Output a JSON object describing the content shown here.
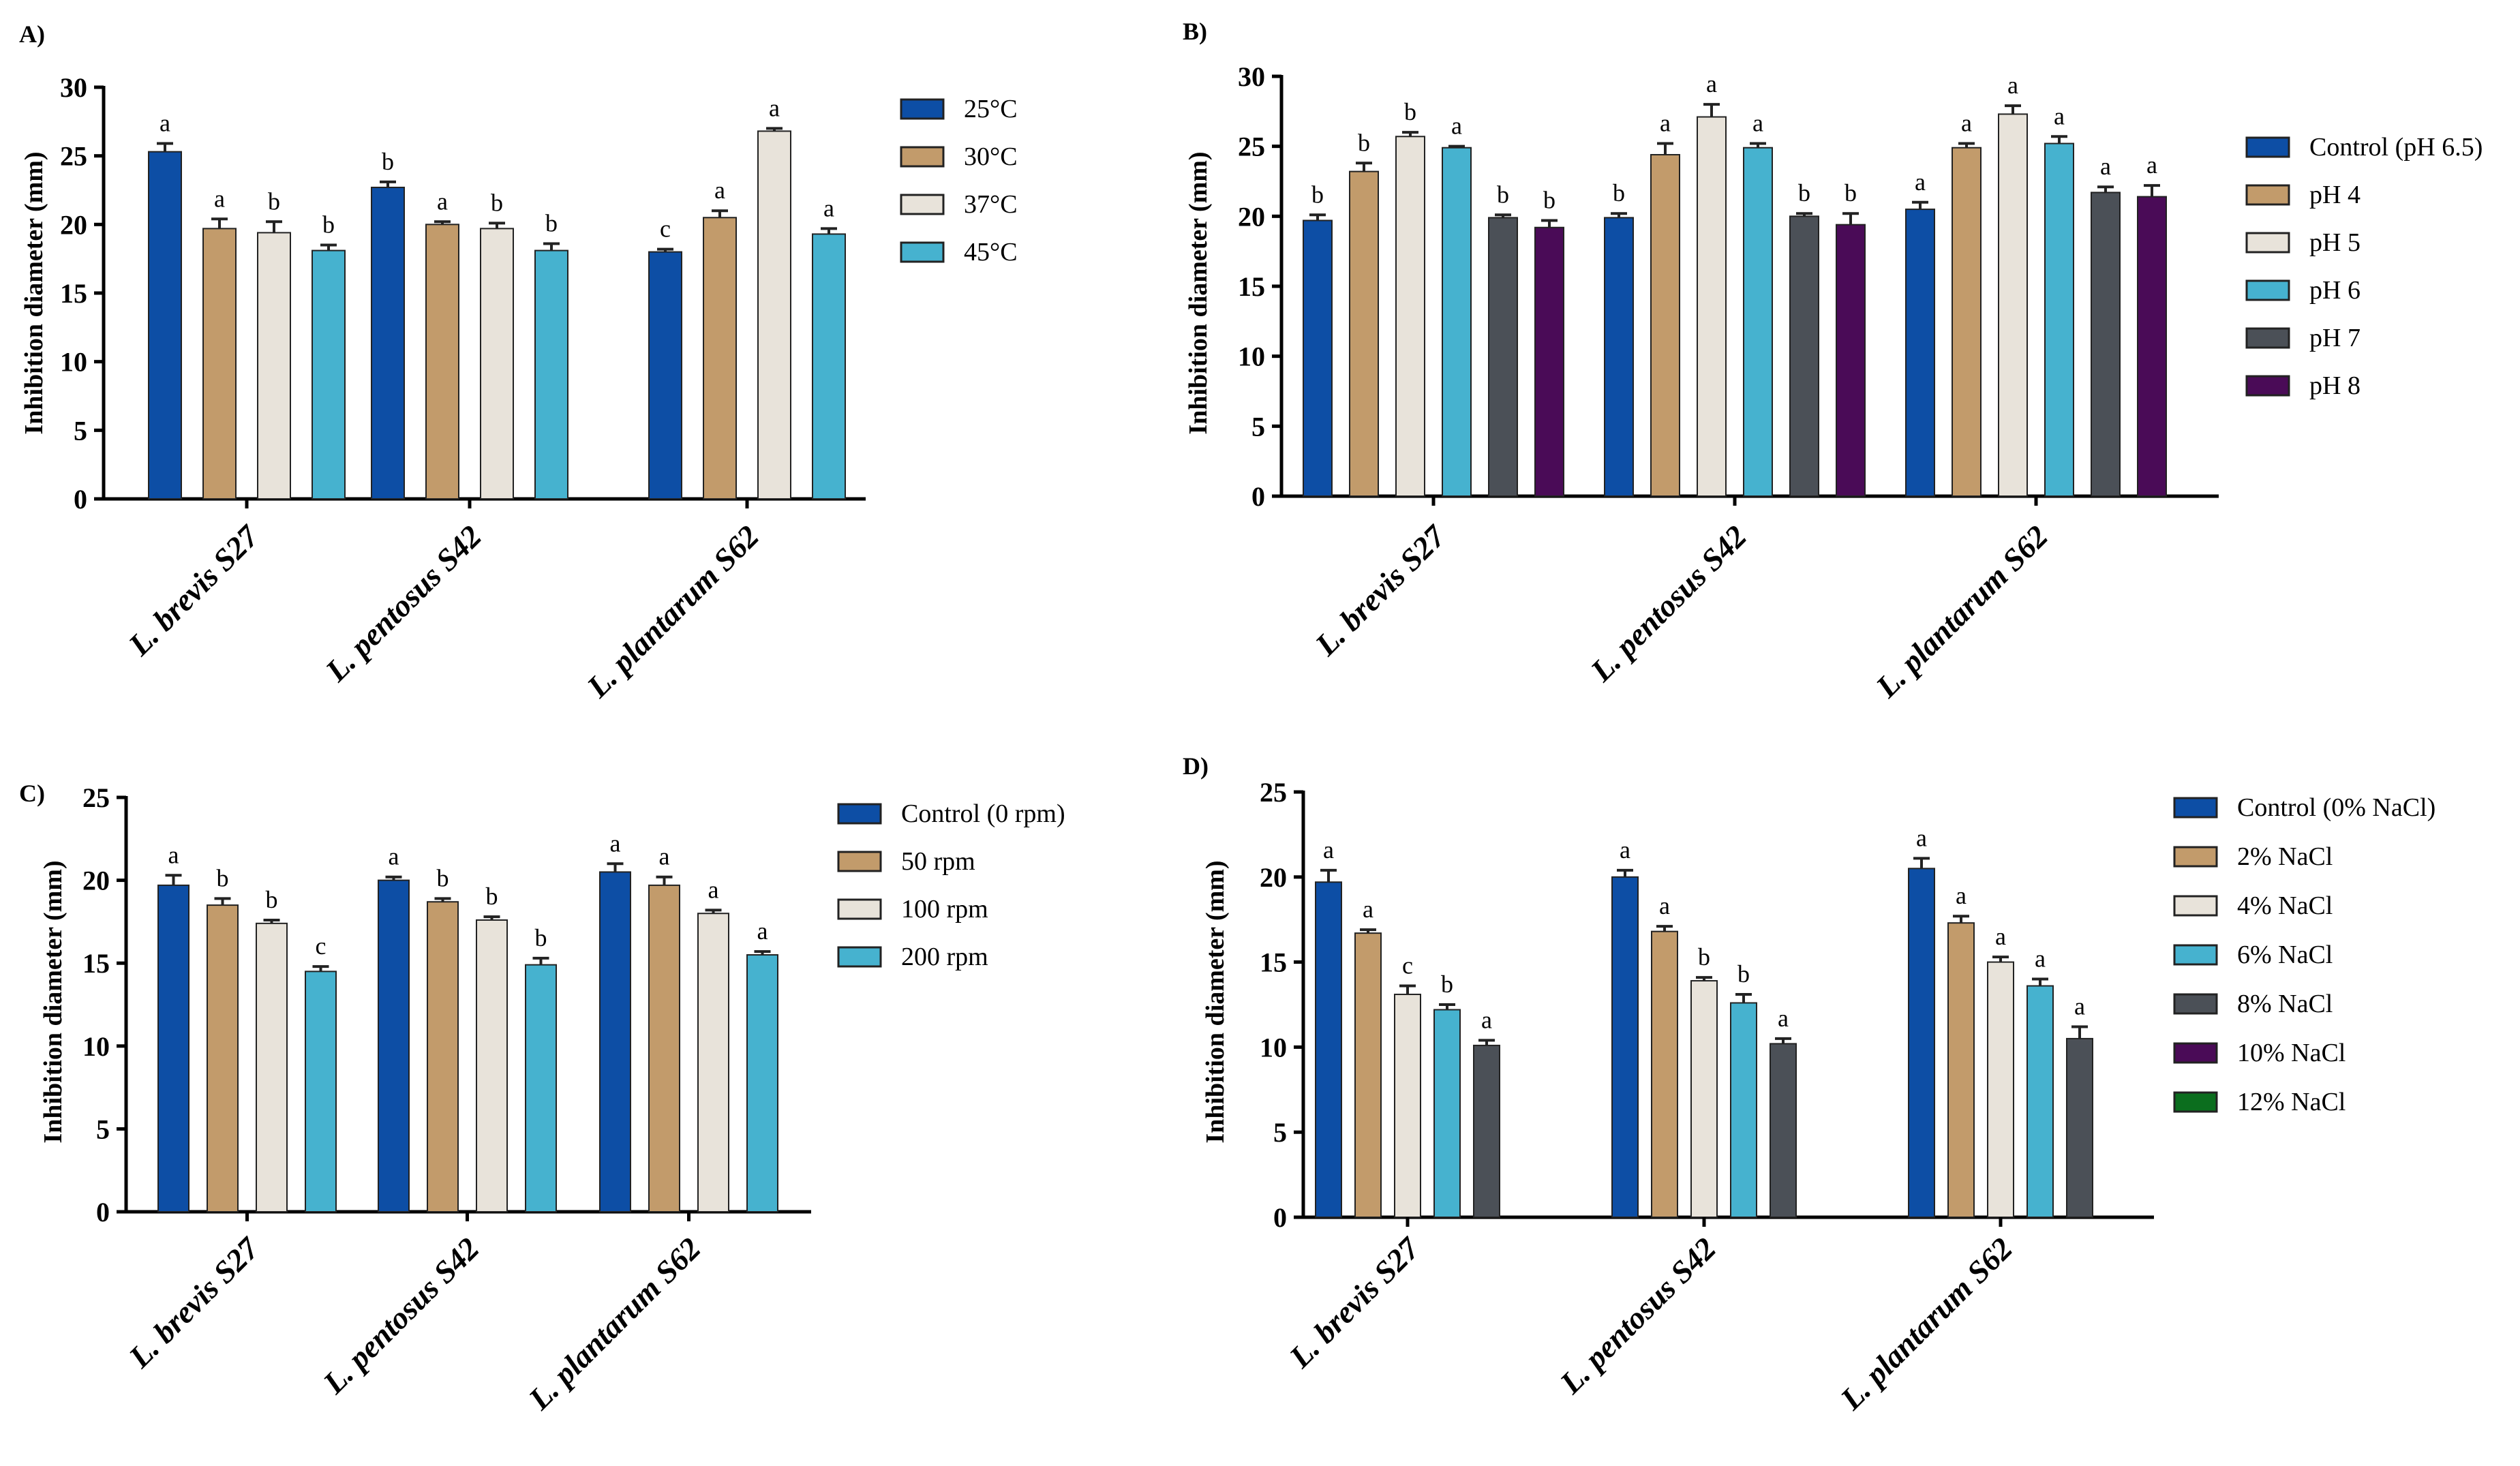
{
  "colors": {
    "blue": "#0d4ea5",
    "tan": "#c29b6b",
    "cream": "#e8e3da",
    "cyan": "#46b2cf",
    "gray": "#4b5057",
    "purple": "#4a0b57",
    "green": "#0b6e1e"
  },
  "chart_data": [
    {
      "panel_label": "A)",
      "type": "bar",
      "ylabel": "Inhibition diameter (mm)",
      "ylim": [
        0,
        30
      ],
      "yticks": [
        0,
        5,
        10,
        15,
        20,
        25,
        30
      ],
      "categories": [
        "L. brevis S27",
        "L. pentosus S42",
        "L. plantarum S62"
      ],
      "series": [
        {
          "name": "25°C",
          "color": "blue",
          "values": [
            25.3,
            22.7,
            18.0
          ],
          "errors": [
            0.6,
            0.4,
            0.2
          ],
          "letters": [
            "a",
            "b",
            "c"
          ]
        },
        {
          "name": "30°C",
          "color": "tan",
          "values": [
            19.7,
            20.0,
            20.5
          ],
          "errors": [
            0.7,
            0.2,
            0.5
          ],
          "letters": [
            "a",
            "a",
            "a"
          ]
        },
        {
          "name": "37°C",
          "color": "cream",
          "values": [
            19.4,
            19.7,
            26.8
          ],
          "errors": [
            0.8,
            0.4,
            0.2
          ],
          "letters": [
            "b",
            "b",
            "a"
          ]
        },
        {
          "name": "45°C",
          "color": "cyan",
          "values": [
            18.1,
            18.1,
            19.3
          ],
          "errors": [
            0.4,
            0.5,
            0.4
          ],
          "letters": [
            "b",
            "b",
            "a"
          ]
        }
      ]
    },
    {
      "panel_label": "B)",
      "type": "bar",
      "ylabel": "Inhibition diameter (mm)",
      "ylim": [
        0,
        30
      ],
      "yticks": [
        0,
        5,
        10,
        15,
        20,
        25,
        30
      ],
      "categories": [
        "L. brevis S27",
        "L. pentosus S42",
        "L. plantarum S62"
      ],
      "series": [
        {
          "name": "Control (pH 6.5)",
          "color": "blue",
          "values": [
            19.7,
            19.9,
            20.5
          ],
          "errors": [
            0.4,
            0.3,
            0.5
          ],
          "letters": [
            "b",
            "b",
            "a"
          ]
        },
        {
          "name": "pH 4",
          "color": "tan",
          "values": [
            23.2,
            24.4,
            24.9
          ],
          "errors": [
            0.6,
            0.8,
            0.3
          ],
          "letters": [
            "b",
            "a",
            "a"
          ]
        },
        {
          "name": "pH 5",
          "color": "cream",
          "values": [
            25.7,
            27.1,
            27.3
          ],
          "errors": [
            0.3,
            0.9,
            0.6
          ],
          "letters": [
            "b",
            "a",
            "a"
          ]
        },
        {
          "name": "pH 6",
          "color": "cyan",
          "values": [
            24.9,
            24.9,
            25.2
          ],
          "errors": [
            0.1,
            0.3,
            0.5
          ],
          "letters": [
            "a",
            "a",
            "a"
          ]
        },
        {
          "name": "pH 7",
          "color": "gray",
          "values": [
            19.9,
            20.0,
            21.7
          ],
          "errors": [
            0.2,
            0.2,
            0.4
          ],
          "letters": [
            "b",
            "b",
            "a"
          ]
        },
        {
          "name": "pH 8",
          "color": "purple",
          "values": [
            19.2,
            19.4,
            21.4
          ],
          "errors": [
            0.5,
            0.8,
            0.8
          ],
          "letters": [
            "b",
            "b",
            "a"
          ]
        }
      ]
    },
    {
      "panel_label": "C)",
      "type": "bar",
      "ylabel": "Inhibition diameter (mm)",
      "ylim": [
        0,
        25
      ],
      "yticks": [
        0,
        5,
        10,
        15,
        20,
        25
      ],
      "categories": [
        "L. brevis S27",
        "L. pentosus S42",
        "L. plantarum S62"
      ],
      "series": [
        {
          "name": "Control (0 rpm)",
          "color": "blue",
          "values": [
            19.7,
            20.0,
            20.5
          ],
          "errors": [
            0.6,
            0.2,
            0.5
          ],
          "letters": [
            "a",
            "a",
            "a"
          ]
        },
        {
          "name": "50 rpm",
          "color": "tan",
          "values": [
            18.5,
            18.7,
            19.7
          ],
          "errors": [
            0.4,
            0.2,
            0.5
          ],
          "letters": [
            "b",
            "b",
            "a"
          ]
        },
        {
          "name": "100 rpm",
          "color": "cream",
          "values": [
            17.4,
            17.6,
            18.0
          ],
          "errors": [
            0.2,
            0.2,
            0.2
          ],
          "letters": [
            "b",
            "b",
            "a"
          ]
        },
        {
          "name": "200 rpm",
          "color": "cyan",
          "values": [
            14.5,
            14.9,
            15.5
          ],
          "errors": [
            0.3,
            0.4,
            0.2
          ],
          "letters": [
            "c",
            "b",
            "a"
          ]
        }
      ]
    },
    {
      "panel_label": "D)",
      "type": "bar",
      "ylabel": "Inhibition diameter (mm)",
      "ylim": [
        0,
        25
      ],
      "yticks": [
        0,
        5,
        10,
        15,
        20,
        25
      ],
      "categories": [
        "L. brevis S27",
        "L. pentosus S42",
        "L. plantarum S62"
      ],
      "series": [
        {
          "name": "Control (0% NaCl)",
          "color": "blue",
          "values": [
            19.7,
            20.0,
            20.5
          ],
          "errors": [
            0.7,
            0.4,
            0.6
          ],
          "letters": [
            "a",
            "a",
            "a"
          ]
        },
        {
          "name": "2% NaCl",
          "color": "tan",
          "values": [
            16.7,
            16.8,
            17.3
          ],
          "errors": [
            0.2,
            0.3,
            0.4
          ],
          "letters": [
            "a",
            "a",
            "a"
          ]
        },
        {
          "name": "4% NaCl",
          "color": "cream",
          "values": [
            13.1,
            13.9,
            15.0
          ],
          "errors": [
            0.5,
            0.2,
            0.3
          ],
          "letters": [
            "c",
            "b",
            "a"
          ]
        },
        {
          "name": "6% NaCl",
          "color": "cyan",
          "values": [
            12.2,
            12.6,
            13.6
          ],
          "errors": [
            0.3,
            0.5,
            0.4
          ],
          "letters": [
            "b",
            "b",
            "a"
          ]
        },
        {
          "name": "8% NaCl",
          "color": "gray",
          "values": [
            10.1,
            10.2,
            10.5
          ],
          "errors": [
            0.3,
            0.3,
            0.7
          ],
          "letters": [
            "a",
            "a",
            "a"
          ]
        },
        {
          "name": "10% NaCl",
          "color": "purple",
          "values": [
            0,
            0,
            0
          ],
          "errors": [
            0,
            0,
            0
          ],
          "letters": [
            "",
            "",
            ""
          ]
        },
        {
          "name": "12% NaCl",
          "color": "green",
          "values": [
            0,
            0,
            0
          ],
          "errors": [
            0,
            0,
            0
          ],
          "letters": [
            "",
            "",
            ""
          ]
        }
      ]
    }
  ]
}
